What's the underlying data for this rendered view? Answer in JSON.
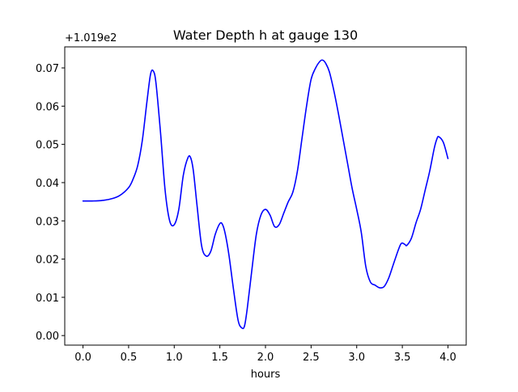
{
  "chart_data": {
    "type": "line",
    "title": "Water Depth h at gauge 130",
    "xlabel": "hours",
    "ylabel": "",
    "offset_label": "+1.019e2",
    "xlim": [
      -0.2,
      4.2
    ],
    "ylim": [
      -0.0025,
      0.0755
    ],
    "xticks": [
      0.0,
      0.5,
      1.0,
      1.5,
      2.0,
      2.5,
      3.0,
      3.5,
      4.0
    ],
    "xtick_labels": [
      "0.0",
      "0.5",
      "1.0",
      "1.5",
      "2.0",
      "2.5",
      "3.0",
      "3.5",
      "4.0"
    ],
    "yticks": [
      0.0,
      0.01,
      0.02,
      0.03,
      0.04,
      0.05,
      0.06,
      0.07
    ],
    "ytick_labels": [
      "0.00",
      "0.01",
      "0.02",
      "0.03",
      "0.04",
      "0.05",
      "0.06",
      "0.07"
    ],
    "grid": false,
    "series": [
      {
        "color": "#0000ff",
        "x": [
          0.0,
          0.1,
          0.2,
          0.3,
          0.4,
          0.5,
          0.55,
          0.6,
          0.65,
          0.7,
          0.74,
          0.77,
          0.8,
          0.85,
          0.9,
          0.95,
          1.0,
          1.05,
          1.1,
          1.15,
          1.18,
          1.21,
          1.25,
          1.3,
          1.35,
          1.4,
          1.45,
          1.5,
          1.53,
          1.56,
          1.6,
          1.65,
          1.7,
          1.74,
          1.77,
          1.8,
          1.85,
          1.9,
          1.95,
          2.0,
          2.05,
          2.1,
          2.15,
          2.2,
          2.25,
          2.3,
          2.35,
          2.4,
          2.45,
          2.5,
          2.55,
          2.6,
          2.63,
          2.66,
          2.7,
          2.75,
          2.8,
          2.85,
          2.9,
          2.95,
          3.0,
          3.05,
          3.1,
          3.15,
          3.2,
          3.25,
          3.3,
          3.35,
          3.4,
          3.45,
          3.48,
          3.5,
          3.53,
          3.55,
          3.6,
          3.65,
          3.7,
          3.75,
          3.8,
          3.85,
          3.88,
          3.9,
          3.95,
          4.0
        ],
        "y": [
          0.0352,
          0.0352,
          0.0353,
          0.0357,
          0.0366,
          0.0387,
          0.041,
          0.0445,
          0.051,
          0.061,
          0.0683,
          0.0692,
          0.066,
          0.053,
          0.038,
          0.03,
          0.029,
          0.033,
          0.042,
          0.0465,
          0.0465,
          0.043,
          0.034,
          0.0235,
          0.0208,
          0.022,
          0.0265,
          0.0293,
          0.029,
          0.0265,
          0.021,
          0.012,
          0.004,
          0.002,
          0.0025,
          0.007,
          0.017,
          0.0265,
          0.0315,
          0.033,
          0.0315,
          0.0285,
          0.029,
          0.032,
          0.035,
          0.0375,
          0.043,
          0.0515,
          0.06,
          0.067,
          0.07,
          0.0718,
          0.072,
          0.0712,
          0.069,
          0.064,
          0.058,
          0.0515,
          0.045,
          0.0385,
          0.033,
          0.027,
          0.018,
          0.014,
          0.0132,
          0.0125,
          0.0128,
          0.015,
          0.0185,
          0.022,
          0.0238,
          0.0242,
          0.0238,
          0.0236,
          0.0255,
          0.0295,
          0.033,
          0.038,
          0.043,
          0.049,
          0.0515,
          0.052,
          0.0505,
          0.0463
        ]
      }
    ]
  }
}
